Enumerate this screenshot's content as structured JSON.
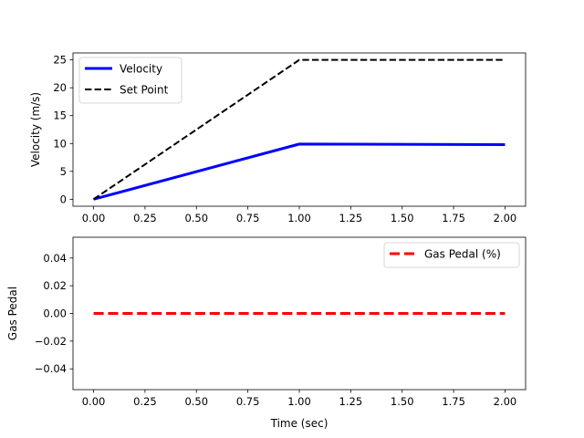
{
  "chart_data": [
    {
      "type": "line",
      "xlabel": "",
      "ylabel": "Velocity (m/s)",
      "xlim": [
        -0.1,
        2.1
      ],
      "ylim": [
        -1.25,
        26.25
      ],
      "xticks": [
        0.0,
        0.25,
        0.5,
        0.75,
        1.0,
        1.25,
        1.5,
        1.75,
        2.0
      ],
      "xtick_labels": [
        "0.00",
        "0.25",
        "0.50",
        "0.75",
        "1.00",
        "1.25",
        "1.50",
        "1.75",
        "2.00"
      ],
      "yticks": [
        0,
        5,
        10,
        15,
        20,
        25
      ],
      "ytick_labels": [
        "0",
        "5",
        "10",
        "15",
        "20",
        "25"
      ],
      "grid": false,
      "legend_position": "upper-left",
      "series": [
        {
          "name": "Velocity",
          "color": "#0000ff",
          "style": "solid",
          "x": [
            0.0,
            1.0,
            2.0
          ],
          "y": [
            0.0,
            9.9,
            9.8
          ]
        },
        {
          "name": "Set Point",
          "color": "#000000",
          "style": "dashed",
          "x": [
            0.0,
            1.0,
            2.0
          ],
          "y": [
            0.0,
            25.0,
            25.0
          ]
        }
      ]
    },
    {
      "type": "line",
      "xlabel": "Time (sec)",
      "ylabel": "Gas Pedal",
      "xlim": [
        -0.1,
        2.1
      ],
      "ylim": [
        -0.055,
        0.055
      ],
      "xticks": [
        0.0,
        0.25,
        0.5,
        0.75,
        1.0,
        1.25,
        1.5,
        1.75,
        2.0
      ],
      "xtick_labels": [
        "0.00",
        "0.25",
        "0.50",
        "0.75",
        "1.00",
        "1.25",
        "1.50",
        "1.75",
        "2.00"
      ],
      "yticks": [
        -0.04,
        -0.02,
        0.0,
        0.02,
        0.04
      ],
      "ytick_labels": [
        "−0.04",
        "−0.02",
        "0.00",
        "0.02",
        "0.04"
      ],
      "grid": false,
      "legend_position": "upper-right",
      "series": [
        {
          "name": "Gas Pedal (%)",
          "color": "#ff0000",
          "style": "dashed",
          "x": [
            0.0,
            1.0,
            2.0
          ],
          "y": [
            0.0,
            0.0,
            0.0
          ]
        }
      ]
    }
  ]
}
